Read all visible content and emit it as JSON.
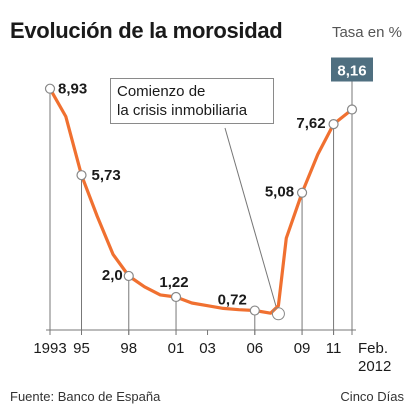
{
  "header": {
    "title": "Evolución de la morosidad",
    "unit": "Tasa en %"
  },
  "annotation": {
    "line1": "Comienzo de",
    "line2": "la crisis inmobiliaria"
  },
  "footer": {
    "source": "Fuente: Banco de España",
    "credit": "Cinco Días"
  },
  "colors": {
    "line": "#f07030",
    "highlight_box": "#4f6f80",
    "marker_fill": "#ffffff",
    "marker_stroke": "#888888",
    "axis": "#777777"
  },
  "chart_data": {
    "type": "line",
    "title": "Evolución de la morosidad",
    "ylabel": "Tasa en %",
    "grid": false,
    "ylim": [
      0,
      9.4
    ],
    "xlim": [
      1993,
      2012.17
    ],
    "series": [
      {
        "x": [
          1993,
          1994,
          1995,
          1996,
          1997,
          1998,
          1999,
          2000,
          2001,
          2002,
          2003,
          2004,
          2005,
          2006,
          2007,
          2007.5,
          2008,
          2009,
          2010,
          2011,
          2012.17
        ],
        "values": [
          8.93,
          7.9,
          5.73,
          4.2,
          2.8,
          2.0,
          1.6,
          1.3,
          1.22,
          1.0,
          0.9,
          0.8,
          0.75,
          0.72,
          0.62,
          0.9,
          3.4,
          5.08,
          6.5,
          7.62,
          8.16
        ]
      }
    ],
    "labeled_points": [
      {
        "x": 1993,
        "y": 8.93,
        "label": "8,93"
      },
      {
        "x": 1995,
        "y": 5.73,
        "label": "5,73"
      },
      {
        "x": 1998,
        "y": 2.0,
        "label": "2,0"
      },
      {
        "x": 2001,
        "y": 1.22,
        "label": "1,22"
      },
      {
        "x": 2006,
        "y": 0.72,
        "label": "0,72"
      },
      {
        "x": 2009,
        "y": 5.08,
        "label": "5,08"
      },
      {
        "x": 2011,
        "y": 7.62,
        "label": "7,62"
      },
      {
        "x": 2012.17,
        "y": 8.16,
        "label": "8,16",
        "highlight": true
      }
    ],
    "x_ticks": [
      {
        "x": 1993,
        "label": "1993"
      },
      {
        "x": 1995,
        "label": "95"
      },
      {
        "x": 1998,
        "label": "98"
      },
      {
        "x": 2001,
        "label": "01"
      },
      {
        "x": 2003,
        "label": "03"
      },
      {
        "x": 2006,
        "label": "06"
      },
      {
        "x": 2009,
        "label": "09"
      },
      {
        "x": 2011,
        "label": "11"
      },
      {
        "x": 2012.17,
        "label": "Feb.",
        "sublabel": "2012"
      }
    ],
    "crisis_start": {
      "x": 2007.5,
      "y": 0.6
    }
  }
}
